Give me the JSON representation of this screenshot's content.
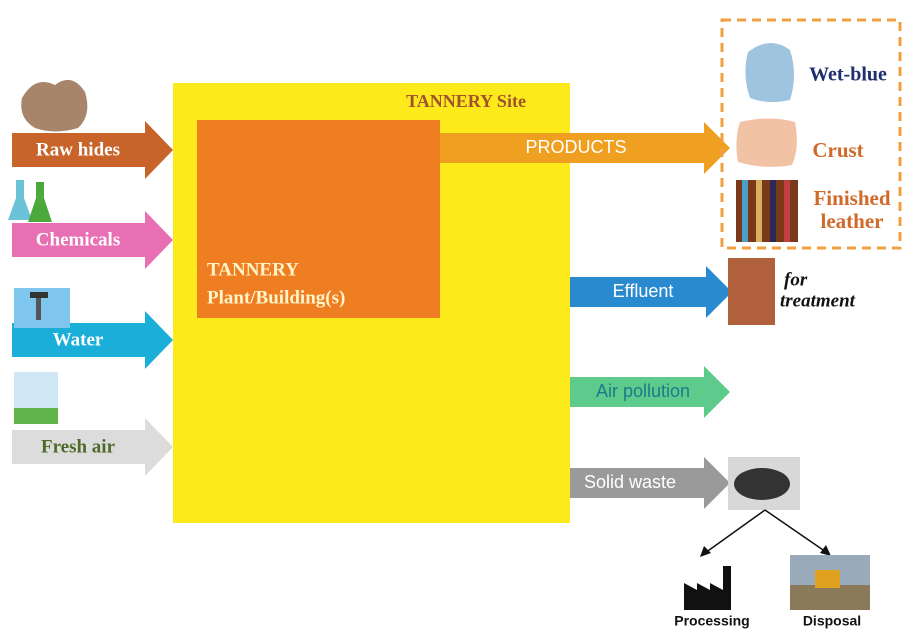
{
  "site": {
    "title": "TANNERY Site"
  },
  "plant": {
    "lines": [
      "TANNERY",
      "Plant/Building(s)"
    ]
  },
  "inputs": [
    {
      "label": "Raw hides"
    },
    {
      "label": "Chemicals"
    },
    {
      "label": "Water"
    },
    {
      "label": "Fresh air"
    }
  ],
  "outputs": [
    {
      "label": "PRODUCTS"
    },
    {
      "label": "Effluent"
    },
    {
      "label": "Air pollution"
    },
    {
      "label": "Solid waste"
    }
  ],
  "products": [
    {
      "lines": [
        "Wet-blue"
      ]
    },
    {
      "lines": [
        "Crust"
      ]
    },
    {
      "lines": [
        "Finished",
        "leather"
      ]
    }
  ],
  "effluent_note": {
    "lines": [
      "for",
      "treatment"
    ]
  },
  "solid_waste_destinations": [
    {
      "label": "Processing"
    },
    {
      "label": "Disposal"
    }
  ]
}
